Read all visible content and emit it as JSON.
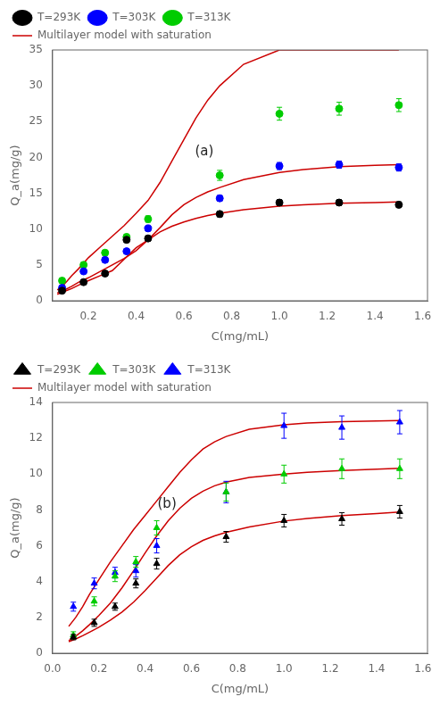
{
  "chart_data": [
    {
      "type": "scatter",
      "annotation": "(a)",
      "xlabel": "C(mg/mL)",
      "ylabel": "Q_a(mg/g)",
      "xlim": [
        0.05,
        1.62
      ],
      "ylim": [
        0,
        35
      ],
      "xticks": [
        0.2,
        0.4,
        0.6,
        0.8,
        {
          "value": 1,
          "label": "1.0"
        },
        1.2,
        1.4,
        1.6
      ],
      "yticks": [
        0,
        5,
        10,
        15,
        20,
        25,
        30,
        35
      ],
      "grid": false,
      "legend": "upper left",
      "series": [
        {
          "name": "T=293K",
          "color": "#000000",
          "marker": "circle",
          "x": [
            0.09,
            0.18,
            0.27,
            0.36,
            0.45,
            0.75,
            1.0,
            1.25,
            1.5
          ],
          "values": [
            1.4,
            2.6,
            3.8,
            8.5,
            8.7,
            12.1,
            13.7,
            13.7,
            13.4
          ],
          "errors": [
            0.25,
            0.25,
            0.3,
            0.35,
            0.35,
            0.4,
            0.4,
            0.4,
            0.4
          ]
        },
        {
          "name": "T=303K",
          "color": "#0000ff",
          "marker": "circle",
          "x": [
            0.09,
            0.18,
            0.27,
            0.36,
            0.45,
            0.75,
            1.0,
            1.25,
            1.5
          ],
          "values": [
            1.8,
            4.1,
            5.7,
            6.9,
            10.1,
            14.3,
            18.8,
            19.0,
            18.6
          ],
          "errors": [
            0.25,
            0.3,
            0.3,
            0.3,
            0.35,
            0.4,
            0.5,
            0.5,
            0.5
          ]
        },
        {
          "name": "T=313K",
          "color": "#00cc00",
          "marker": "circle",
          "x": [
            0.09,
            0.18,
            0.27,
            0.36,
            0.45,
            0.75,
            1.0,
            1.25,
            1.5
          ],
          "values": [
            2.8,
            5.0,
            6.7,
            8.9,
            11.4,
            17.5,
            26.1,
            26.8,
            27.3
          ],
          "errors": [
            0.3,
            0.35,
            0.35,
            0.4,
            0.45,
            0.7,
            0.9,
            0.9,
            0.9
          ]
        },
        {
          "name": "Multilayer model with saturation",
          "type": "line",
          "color": "#cc0000",
          "line_style": "solid",
          "marker": "none",
          "lines": [
            {
              "x": [
                0.07,
                0.1,
                0.13,
                0.16,
                0.2,
                0.25,
                0.3,
                0.35,
                0.4,
                0.45,
                0.5,
                0.55,
                0.6,
                0.65,
                0.7,
                0.75,
                0.85,
                1.0,
                1.1,
                1.25,
                1.4,
                1.5
              ],
              "values": [
                0.9,
                1.3,
                1.7,
                2.2,
                2.8,
                3.5,
                4.2,
                5.8,
                7.4,
                8.5,
                9.6,
                10.4,
                11.0,
                11.5,
                11.9,
                12.2,
                12.7,
                13.2,
                13.4,
                13.6,
                13.7,
                13.8
              ]
            },
            {
              "x": [
                0.07,
                0.1,
                0.13,
                0.16,
                0.2,
                0.25,
                0.3,
                0.35,
                0.4,
                0.45,
                0.5,
                0.55,
                0.6,
                0.65,
                0.7,
                0.75,
                0.85,
                1.0,
                1.1,
                1.25,
                1.4,
                1.5
              ],
              "values": [
                1.1,
                1.5,
                2.0,
                2.6,
                3.2,
                4.1,
                5.0,
                5.9,
                7.0,
                8.5,
                10.2,
                12.0,
                13.4,
                14.4,
                15.2,
                15.8,
                16.9,
                17.9,
                18.3,
                18.7,
                18.9,
                19.0
              ]
            },
            {
              "x": [
                0.07,
                0.09,
                0.11,
                0.13,
                0.16,
                0.2,
                0.25,
                0.3,
                0.35,
                0.4,
                0.45,
                0.5,
                0.55,
                0.6,
                0.65,
                0.7,
                0.75,
                0.85,
                1.0,
                1.1,
                1.25,
                1.4,
                1.5
              ],
              "values": [
                1.5,
                2.0,
                2.7,
                3.5,
                4.5,
                6.0,
                7.5,
                9.0,
                10.5,
                12.2,
                14.0,
                16.5,
                19.5,
                22.5,
                25.5,
                28.0,
                30.0,
                33.0,
                35.0,
                35.0,
                35.0,
                35.0,
                35.0
              ]
            }
          ]
        }
      ]
    },
    {
      "type": "scatter",
      "annotation": "(b)",
      "xlabel": "C(mg/mL)",
      "ylabel": "Q_a(mg/g)",
      "xlim": [
        0.0,
        1.62
      ],
      "ylim": [
        0,
        14
      ],
      "xticks": [
        {
          "value": 0,
          "label": "0.0"
        },
        0.2,
        0.4,
        0.6,
        0.8,
        {
          "value": 1,
          "label": "1.0"
        },
        1.2,
        1.4,
        1.6
      ],
      "yticks": [
        0,
        2,
        4,
        6,
        8,
        10,
        12,
        14
      ],
      "grid": false,
      "legend": "upper left",
      "series": [
        {
          "name": "T=293K",
          "color": "#000000",
          "marker": "triangle",
          "x": [
            0.09,
            0.18,
            0.27,
            0.36,
            0.45,
            0.75,
            1.0,
            1.25,
            1.5
          ],
          "values": [
            0.9,
            1.7,
            2.6,
            3.9,
            5.0,
            6.5,
            7.4,
            7.5,
            7.9
          ],
          "errors": [
            0.15,
            0.2,
            0.2,
            0.25,
            0.3,
            0.3,
            0.35,
            0.35,
            0.35
          ]
        },
        {
          "name": "T=303K",
          "color": "#00cc00",
          "marker": "triangle",
          "x": [
            0.09,
            0.18,
            0.27,
            0.36,
            0.45,
            0.75,
            1.0,
            1.25,
            1.5
          ],
          "values": [
            1.0,
            2.9,
            4.3,
            5.1,
            7.0,
            9.0,
            10.0,
            10.3,
            10.3
          ],
          "errors": [
            0.2,
            0.25,
            0.3,
            0.3,
            0.4,
            0.5,
            0.5,
            0.55,
            0.55
          ]
        },
        {
          "name": "T=313K",
          "color": "#0000ff",
          "marker": "triangle",
          "x": [
            0.09,
            0.18,
            0.27,
            0.36,
            0.45,
            0.75,
            1.0,
            1.25,
            1.5
          ],
          "values": [
            2.6,
            3.9,
            4.5,
            4.6,
            6.0,
            9.0,
            12.7,
            12.6,
            12.9
          ],
          "errors": [
            0.25,
            0.3,
            0.3,
            0.35,
            0.4,
            0.6,
            0.7,
            0.65,
            0.65
          ]
        },
        {
          "name": "Multilayer model with saturation",
          "type": "line",
          "color": "#cc0000",
          "line_style": "solid",
          "marker": "none",
          "lines": [
            {
              "x": [
                0.07,
                0.1,
                0.13,
                0.16,
                0.2,
                0.25,
                0.3,
                0.35,
                0.4,
                0.45,
                0.5,
                0.55,
                0.6,
                0.65,
                0.7,
                0.75,
                0.85,
                1.0,
                1.1,
                1.25,
                1.4,
                1.5
              ],
              "values": [
                0.65,
                0.8,
                0.98,
                1.18,
                1.45,
                1.85,
                2.3,
                2.85,
                3.5,
                4.2,
                4.9,
                5.5,
                5.95,
                6.3,
                6.55,
                6.75,
                7.05,
                7.38,
                7.52,
                7.68,
                7.8,
                7.88
              ]
            },
            {
              "x": [
                0.07,
                0.1,
                0.13,
                0.16,
                0.2,
                0.25,
                0.3,
                0.35,
                0.4,
                0.45,
                0.5,
                0.55,
                0.6,
                0.65,
                0.7,
                0.75,
                0.85,
                1.0,
                1.1,
                1.25,
                1.4,
                1.5
              ],
              "values": [
                0.7,
                0.95,
                1.25,
                1.6,
                2.1,
                2.8,
                3.65,
                4.6,
                5.6,
                6.55,
                7.4,
                8.1,
                8.65,
                9.05,
                9.35,
                9.55,
                9.82,
                10.0,
                10.1,
                10.2,
                10.28,
                10.33
              ]
            },
            {
              "x": [
                0.07,
                0.1,
                0.13,
                0.16,
                0.2,
                0.25,
                0.3,
                0.35,
                0.4,
                0.45,
                0.5,
                0.55,
                0.6,
                0.65,
                0.7,
                0.75,
                0.85,
                1.0,
                1.1,
                1.25,
                1.4,
                1.5
              ],
              "values": [
                1.5,
                2.0,
                2.6,
                3.3,
                4.1,
                5.1,
                6.0,
                6.9,
                7.7,
                8.5,
                9.3,
                10.1,
                10.8,
                11.4,
                11.8,
                12.1,
                12.5,
                12.75,
                12.85,
                12.93,
                12.97,
                12.99
              ]
            }
          ]
        }
      ]
    }
  ]
}
